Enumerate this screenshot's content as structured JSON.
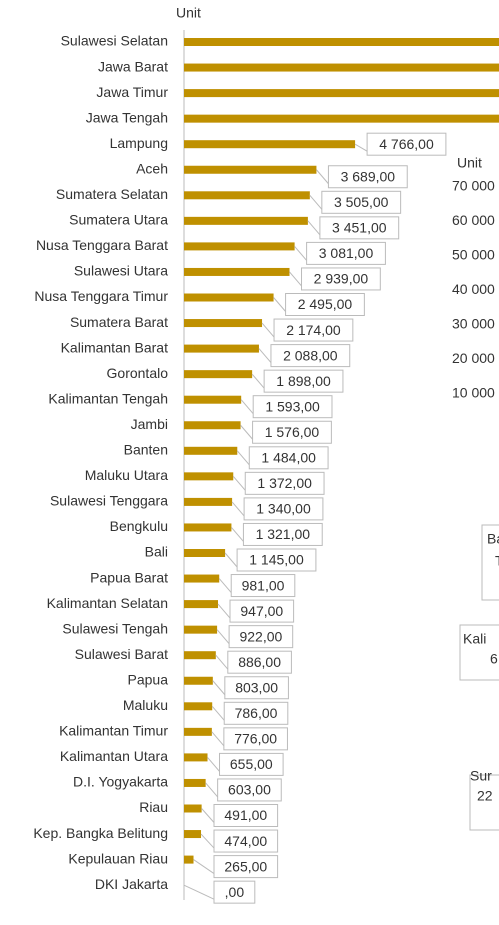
{
  "chart_data": [
    {
      "type": "barh",
      "xlabel": "Unit",
      "color": "#bf9000",
      "categories": [
        "Sulawesi Selatan",
        "Jawa Barat",
        "Jawa Timur",
        "Jawa Tengah",
        "Lampung",
        "Aceh",
        "Sumatera Selatan",
        "Sumatera Utara",
        "Nusa Tenggara Barat",
        "Sulawesi Utara",
        "Nusa Tenggara Timur",
        "Sumatera Barat",
        "Kalimantan Barat",
        "Gorontalo",
        "Kalimantan Tengah",
        "Jambi",
        "Banten",
        "Maluku Utara",
        "Sulawesi Tenggara",
        "Bengkulu",
        "Bali",
        "Papua Barat",
        "Kalimantan Selatan",
        "Sulawesi Tengah",
        "Sulawesi Barat",
        "Papua",
        "Maluku",
        "Kalimantan Timur",
        "Kalimantan Utara",
        "D.I. Yogyakarta",
        "Riau",
        "Kep. Bangka Belitung",
        "Kepulauan Riau",
        "DKI Jakarta"
      ],
      "values": [
        10000,
        10000,
        10000,
        10000,
        4766,
        3689,
        3505,
        3451,
        3081,
        2939,
        2495,
        2174,
        2088,
        1898,
        1593,
        1576,
        1484,
        1372,
        1340,
        1321,
        1145,
        981,
        947,
        922,
        886,
        803,
        786,
        776,
        655,
        603,
        491,
        474,
        265,
        0
      ],
      "value_labels": [
        null,
        null,
        null,
        null,
        "4 766,00",
        "3 689,00",
        "3 505,00",
        "3 451,00",
        "3 081,00",
        "2 939,00",
        "2 495,00",
        "2 174,00",
        "2 088,00",
        "1 898,00",
        "1 593,00",
        "1 576,00",
        "1 484,00",
        "1 372,00",
        "1 340,00",
        "1 321,00",
        "1 145,00",
        "981,00",
        "947,00",
        "922,00",
        "886,00",
        "803,00",
        "786,00",
        "776,00",
        "655,00",
        "603,00",
        "491,00",
        "474,00",
        "265,00",
        ",00"
      ]
    },
    {
      "type": "column",
      "ylabel": "Unit",
      "yticks": [
        {
          "value": 70000,
          "label": "70 000"
        },
        {
          "value": 60000,
          "label": "60 000"
        },
        {
          "value": 50000,
          "label": "50 000"
        },
        {
          "value": 40000,
          "label": "40 000"
        },
        {
          "value": 30000,
          "label": "30 000"
        },
        {
          "value": 20000,
          "label": "20 000"
        },
        {
          "value": 10000,
          "label": "10 000"
        }
      ],
      "annotations": [
        [
          "Ba",
          "T"
        ],
        [
          "Kali",
          "6"
        ],
        [
          "Sur",
          "22"
        ]
      ]
    }
  ]
}
